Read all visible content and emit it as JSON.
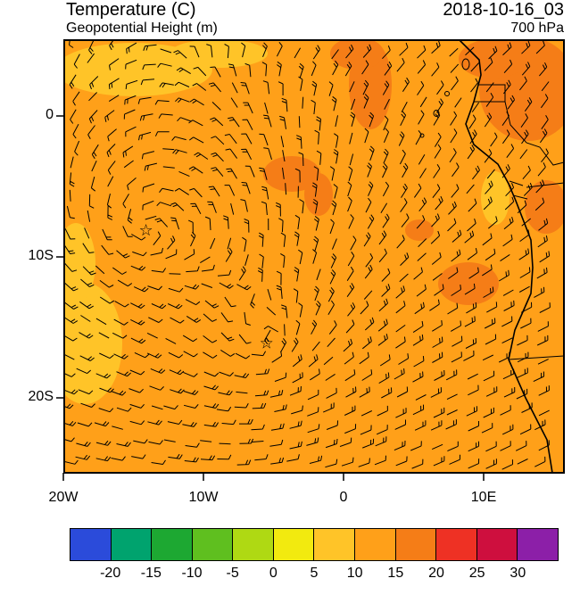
{
  "header": {
    "title": "Temperature (C)",
    "subtitle": "Geopotential Height (m)",
    "datetime": "2018-10-16_03",
    "level": "700 hPa"
  },
  "map": {
    "x_ticks": [
      {
        "label": "20W",
        "lon": -20
      },
      {
        "label": "10W",
        "lon": -10
      },
      {
        "label": "0",
        "lon": 0
      },
      {
        "label": "10E",
        "lon": 10
      }
    ],
    "y_ticks": [
      {
        "label": "0",
        "lat": 0
      },
      {
        "label": "10S",
        "lat": -10
      },
      {
        "label": "20S",
        "lat": -20
      }
    ],
    "markers": [
      {
        "type": "star",
        "lon": -14.1,
        "lat": -8.1
      },
      {
        "type": "star",
        "lon": -5.5,
        "lat": -16.1
      }
    ]
  },
  "colorbar": {
    "tick_labels": [
      "-20",
      "-15",
      "-10",
      "-5",
      "0",
      "5",
      "10",
      "15",
      "20",
      "25",
      "30"
    ],
    "colors": [
      "#2B4BDA",
      "#00A36E",
      "#1DA832",
      "#5FBF1F",
      "#AFD913",
      "#F2EA0F",
      "#FFC428",
      "#FFA019",
      "#F57D17",
      "#EE3124",
      "#CE0F3E",
      "#8C1FA8"
    ]
  },
  "chart_data": {
    "type": "heatmap",
    "title": "Temperature (C)",
    "overlay_field": "Geopotential Height (m)",
    "valid_time": "2018-10-16_03",
    "level": "700 hPa",
    "x_axis": {
      "tick_labels": [
        "20W",
        "10W",
        "0",
        "10E"
      ],
      "lon_range": [
        -20,
        15.7
      ]
    },
    "y_axis": {
      "tick_labels": [
        "0",
        "10S",
        "20S"
      ],
      "lat_range": [
        -25.3,
        5.4
      ]
    },
    "colorbar_boundaries_c": [
      -20,
      -15,
      -10,
      -5,
      0,
      5,
      10,
      15,
      20,
      25,
      30
    ],
    "colorbar_colors": [
      "#2B4BDA",
      "#00A36E",
      "#1DA832",
      "#5FBF1F",
      "#AFD913",
      "#F2EA0F",
      "#FFC428",
      "#FFA019",
      "#F57D17",
      "#EE3124",
      "#CE0F3E",
      "#8C1FA8"
    ],
    "field_summary": {
      "dominant_range_c": [
        10,
        15
      ],
      "warm_patch_range_c": [
        15,
        20
      ],
      "warm_patch_locations": [
        "northeast land area",
        "near 1S mid-ocean",
        "mid-right near coast ~12S"
      ],
      "cool_patch_range_c": [
        5,
        10
      ],
      "cool_patch_locations": [
        "northwest corner",
        "southwest left edge"
      ]
    },
    "low_centers": [
      {
        "marker": "star",
        "lon": -14.1,
        "lat": -8.1
      },
      {
        "marker": "star",
        "lon": -5.5,
        "lat": -16.1
      }
    ],
    "wind": "wind barbs, easterly background flow with clockwise circulation around the two starred low centers",
    "region": "South Atlantic / west coast of southern Africa"
  }
}
